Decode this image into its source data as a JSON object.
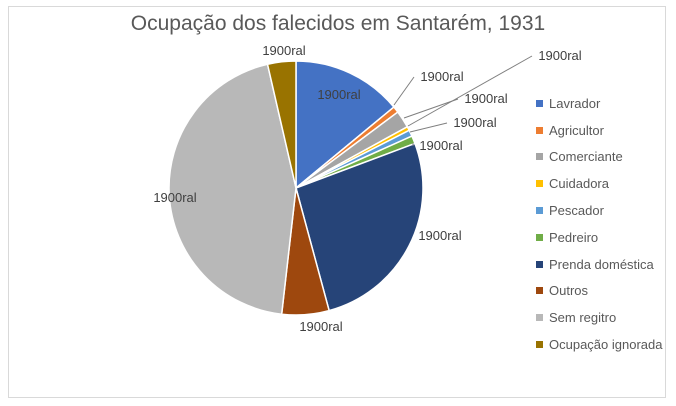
{
  "chart_data": {
    "type": "pie",
    "title": "Ocupação dos falecidos em Santarém, 1931",
    "categories": [
      "Lavrador",
      "Agricultor",
      "Comerciante",
      "Cuidadora",
      "Pescador",
      "Pedreiro",
      "Prenda doméstica",
      "Outros",
      "Sem regitro",
      "Ocupação ignorada"
    ],
    "values": [
      14.0,
      0.8,
      2.2,
      0.5,
      0.8,
      1.0,
      26.5,
      6.0,
      44.6,
      3.6
    ],
    "data_labels": [
      "1900ral",
      "1900ral",
      "1900ral",
      "1900ral",
      "1900ral",
      "1900ral",
      "1900ral",
      "1900ral",
      "1900ral",
      "1900ral"
    ],
    "colors": [
      "#4472c4",
      "#ed7d31",
      "#a5a5a5",
      "#ffc000",
      "#5b9bd5",
      "#70ad47",
      "#264478",
      "#9e480e",
      "#b8b8b8",
      "#997300"
    ],
    "legend": "right"
  }
}
